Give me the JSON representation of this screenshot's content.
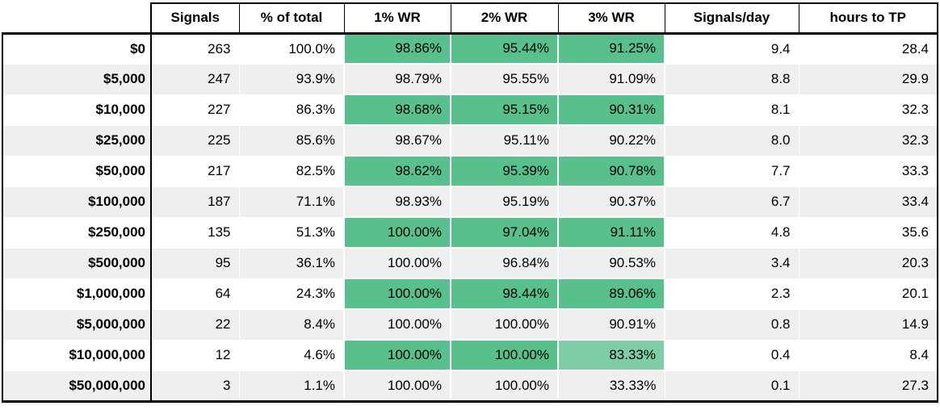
{
  "colors": {
    "green": "#58c08c",
    "light_green": "#7fcda6",
    "stripe_gray": "#efefef",
    "border": "#000000",
    "background": "#ffffff",
    "text": "#000000"
  },
  "chart_data": {
    "type": "table",
    "corner_label": "",
    "columns": [
      "Signals",
      "% of total",
      "1% WR",
      "2% WR",
      "3% WR",
      "Signals/day",
      "hours to TP"
    ],
    "legend_note": "green fill = win-rate conditional formatting; lighter green at 83.33%; no fill at 33.33%",
    "rows": [
      {
        "label": "$0",
        "cells": [
          "263",
          "100.0%",
          "98.86%",
          "95.44%",
          "91.25%",
          "9.4",
          "28.4"
        ],
        "fills": [
          null,
          null,
          "green",
          "green",
          "green",
          null,
          null
        ]
      },
      {
        "label": "$5,000",
        "cells": [
          "247",
          "93.9%",
          "98.79%",
          "95.55%",
          "91.09%",
          "8.8",
          "29.9"
        ],
        "fills": [
          null,
          null,
          "green",
          "green",
          "green",
          null,
          null
        ]
      },
      {
        "label": "$10,000",
        "cells": [
          "227",
          "86.3%",
          "98.68%",
          "95.15%",
          "90.31%",
          "8.1",
          "32.3"
        ],
        "fills": [
          null,
          null,
          "green",
          "green",
          "green",
          null,
          null
        ]
      },
      {
        "label": "$25,000",
        "cells": [
          "225",
          "85.6%",
          "98.67%",
          "95.11%",
          "90.22%",
          "8.0",
          "32.3"
        ],
        "fills": [
          null,
          null,
          "green",
          "green",
          "green",
          null,
          null
        ]
      },
      {
        "label": "$50,000",
        "cells": [
          "217",
          "82.5%",
          "98.62%",
          "95.39%",
          "90.78%",
          "7.7",
          "33.3"
        ],
        "fills": [
          null,
          null,
          "green",
          "green",
          "green",
          null,
          null
        ]
      },
      {
        "label": "$100,000",
        "cells": [
          "187",
          "71.1%",
          "98.93%",
          "95.19%",
          "90.37%",
          "6.7",
          "33.4"
        ],
        "fills": [
          null,
          null,
          "green",
          "green",
          "green",
          null,
          null
        ]
      },
      {
        "label": "$250,000",
        "cells": [
          "135",
          "51.3%",
          "100.00%",
          "97.04%",
          "91.11%",
          "4.8",
          "35.6"
        ],
        "fills": [
          null,
          null,
          "green",
          "green",
          "green",
          null,
          null
        ]
      },
      {
        "label": "$500,000",
        "cells": [
          "95",
          "36.1%",
          "100.00%",
          "96.84%",
          "90.53%",
          "3.4",
          "20.3"
        ],
        "fills": [
          null,
          null,
          "green",
          "green",
          "green",
          null,
          null
        ]
      },
      {
        "label": "$1,000,000",
        "cells": [
          "64",
          "24.3%",
          "100.00%",
          "98.44%",
          "89.06%",
          "2.3",
          "20.1"
        ],
        "fills": [
          null,
          null,
          "green",
          "green",
          "green",
          null,
          null
        ]
      },
      {
        "label": "$5,000,000",
        "cells": [
          "22",
          "8.4%",
          "100.00%",
          "100.00%",
          "90.91%",
          "0.8",
          "14.9"
        ],
        "fills": [
          null,
          null,
          "green",
          "green",
          "green",
          null,
          null
        ]
      },
      {
        "label": "$10,000,000",
        "cells": [
          "12",
          "4.6%",
          "100.00%",
          "100.00%",
          "83.33%",
          "0.4",
          "8.4"
        ],
        "fills": [
          null,
          null,
          "green",
          "green",
          "light",
          null,
          null
        ]
      },
      {
        "label": "$50,000,000",
        "cells": [
          "3",
          "1.1%",
          "100.00%",
          "100.00%",
          "33.33%",
          "0.1",
          "27.3"
        ],
        "fills": [
          null,
          null,
          "green",
          "green",
          null,
          null,
          null
        ]
      }
    ]
  }
}
